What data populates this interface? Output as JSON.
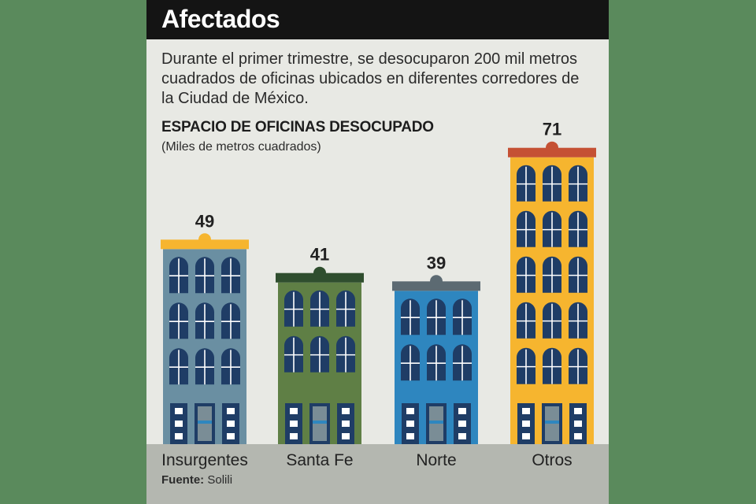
{
  "header": {
    "title": "Afectados"
  },
  "intro": "Durante el primer trimestre, se desocuparon 200 mil metros cuadrados de oficinas ubicados en diferentes corredores de la Ciudad de México.",
  "source": {
    "label": "Fuente:",
    "value": "Solili"
  },
  "colors": {
    "background": "#5a8a5c",
    "card": "#e8e9e4",
    "header": "#141414",
    "ground": "#b4b7b0"
  },
  "chart_data": {
    "type": "bar",
    "style": "buildings",
    "title": "ESPACIO DE OFICINAS DESOCUPADO",
    "subtitle": "(Miles de metros cuadrados)",
    "categories": [
      "Insurgentes",
      "Santa Fe",
      "Norte",
      "Otros"
    ],
    "values": [
      49,
      41,
      39,
      71
    ],
    "building_colors": [
      "#6a8fa2",
      "#5f7f45",
      "#2e86bf",
      "#f6b52f"
    ],
    "roof_colors": [
      "#f6b52f",
      "#2f4e2e",
      "#5c6a72",
      "#c55134"
    ],
    "window_color": "#1f3d66",
    "data_labels": true,
    "grid": false,
    "legend": "none"
  }
}
